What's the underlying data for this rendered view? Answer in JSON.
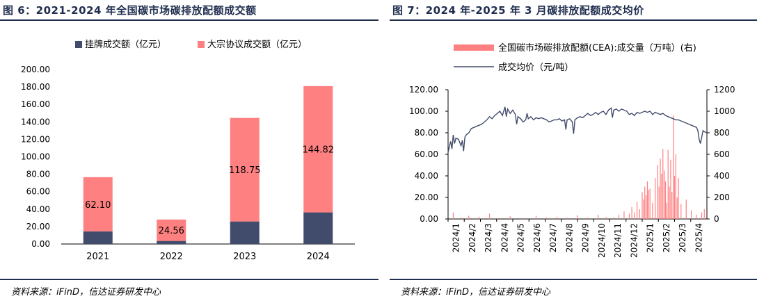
{
  "left": {
    "title": "图 6：2021-2024 年全国碳市场碳排放配额成交额",
    "source": "资料来源：iFinD，信达证券研发中心",
    "chart_data": {
      "type": "bar",
      "stacked": true,
      "categories": [
        "2021",
        "2022",
        "2023",
        "2024"
      ],
      "series": [
        {
          "name": "挂牌成交额（亿元）",
          "color": "#414c6c",
          "values": [
            14.5,
            3.5,
            25.8,
            36.2
          ]
        },
        {
          "name": "大宗协议成交额（亿元）",
          "color": "#ff8080",
          "values": [
            62.1,
            24.56,
            118.75,
            144.82
          ],
          "labels": [
            "62.10",
            "24.56",
            "118.75",
            "144.82"
          ]
        }
      ],
      "ylim": [
        0,
        200
      ],
      "yticks": [
        "0.00",
        "20.00",
        "40.00",
        "60.00",
        "80.00",
        "100.00",
        "120.00",
        "140.00",
        "160.00",
        "180.00",
        "200.00"
      ],
      "legend_position": "top",
      "grid": false
    }
  },
  "right": {
    "title": "图 7：2024 年-2025 年 3 月碳排放配额成交均价",
    "source": "资料来源：iFinD，信达证券研发中心",
    "chart_data": {
      "type": "line",
      "x_tick_labels": [
        "2024/1",
        "2024/2",
        "2024/3",
        "2024/4",
        "2024/5",
        "2024/6",
        "2024/7",
        "2024/8",
        "2024/9",
        "2024/10",
        "2024/11",
        "2024/12",
        "2025/1",
        "2025/2",
        "2025/3",
        "2025/4"
      ],
      "y_left_ticks": [
        "0.00",
        "20.00",
        "40.00",
        "60.00",
        "80.00",
        "100.00",
        "120.00"
      ],
      "y_right_ticks": [
        "0",
        "200",
        "400",
        "600",
        "800",
        "1000",
        "1200"
      ],
      "ylim_left": [
        0,
        120
      ],
      "ylim_right": [
        0,
        1200
      ],
      "legend_position": "top",
      "grid": false,
      "series": [
        {
          "name": "全国碳市场碳排放配额(CEA):成交量（万吨）(右)",
          "type": "bar",
          "axis": "right",
          "color": "#ff8080",
          "points": [
            [
              0.02,
              60
            ],
            [
              0.05,
              15
            ],
            [
              0.08,
              30
            ],
            [
              0.1,
              8
            ],
            [
              0.12,
              20
            ],
            [
              0.16,
              50
            ],
            [
              0.2,
              12
            ],
            [
              0.24,
              25
            ],
            [
              0.3,
              10
            ],
            [
              0.34,
              30
            ],
            [
              0.38,
              15
            ],
            [
              0.42,
              20
            ],
            [
              0.46,
              12
            ],
            [
              0.5,
              35
            ],
            [
              0.54,
              14
            ],
            [
              0.58,
              40
            ],
            [
              0.61,
              18
            ],
            [
              0.64,
              15
            ],
            [
              0.66,
              40
            ],
            [
              0.68,
              70
            ],
            [
              0.7,
              50
            ],
            [
              0.71,
              110
            ],
            [
              0.72,
              60
            ],
            [
              0.73,
              160
            ],
            [
              0.74,
              90
            ],
            [
              0.75,
              250
            ],
            [
              0.755,
              180
            ],
            [
              0.76,
              300
            ],
            [
              0.765,
              220
            ],
            [
              0.77,
              350
            ],
            [
              0.775,
              270
            ],
            [
              0.78,
              280
            ],
            [
              0.79,
              150
            ],
            [
              0.8,
              380
            ],
            [
              0.81,
              500
            ],
            [
              0.815,
              300
            ],
            [
              0.82,
              560
            ],
            [
              0.825,
              420
            ],
            [
              0.83,
              650
            ],
            [
              0.835,
              450
            ],
            [
              0.84,
              350
            ],
            [
              0.845,
              150
            ],
            [
              0.85,
              640
            ],
            [
              0.855,
              300
            ],
            [
              0.86,
              550
            ],
            [
              0.865,
              250
            ],
            [
              0.87,
              960
            ],
            [
              0.875,
              400
            ],
            [
              0.88,
              600
            ],
            [
              0.885,
              200
            ],
            [
              0.89,
              380
            ],
            [
              0.9,
              140
            ],
            [
              0.92,
              180
            ],
            [
              0.94,
              80
            ],
            [
              0.96,
              40
            ],
            [
              0.98,
              60
            ],
            [
              0.99,
              90
            ]
          ]
        },
        {
          "name": "成交均价（元/吨）",
          "type": "line",
          "axis": "left",
          "color": "#414c6c",
          "points": [
            [
              0,
              62
            ],
            [
              0.01,
              72
            ],
            [
              0.015,
              65
            ],
            [
              0.02,
              78
            ],
            [
              0.025,
              70
            ],
            [
              0.03,
              75
            ],
            [
              0.04,
              74
            ],
            [
              0.05,
              68
            ],
            [
              0.055,
              73
            ],
            [
              0.06,
              63
            ],
            [
              0.065,
              76
            ],
            [
              0.07,
              78
            ],
            [
              0.08,
              80
            ],
            [
              0.09,
              84
            ],
            [
              0.1,
              85
            ],
            [
              0.11,
              86
            ],
            [
              0.12,
              87
            ],
            [
              0.13,
              88
            ],
            [
              0.14,
              90
            ],
            [
              0.15,
              92
            ],
            [
              0.16,
              95
            ],
            [
              0.17,
              93
            ],
            [
              0.18,
              96
            ],
            [
              0.19,
              98
            ],
            [
              0.2,
              100
            ],
            [
              0.21,
              96
            ],
            [
              0.22,
              104
            ],
            [
              0.225,
              95
            ],
            [
              0.23,
              102
            ],
            [
              0.24,
              98
            ],
            [
              0.25,
              101
            ],
            [
              0.26,
              97
            ],
            [
              0.265,
              88
            ],
            [
              0.27,
              95
            ],
            [
              0.28,
              93
            ],
            [
              0.29,
              90
            ],
            [
              0.3,
              92
            ],
            [
              0.305,
              98
            ],
            [
              0.31,
              93
            ],
            [
              0.32,
              95
            ],
            [
              0.33,
              92
            ],
            [
              0.34,
              94
            ],
            [
              0.35,
              93
            ],
            [
              0.36,
              94
            ],
            [
              0.37,
              93
            ],
            [
              0.38,
              92
            ],
            [
              0.39,
              90
            ],
            [
              0.4,
              91
            ],
            [
              0.41,
              92
            ],
            [
              0.42,
              92
            ],
            [
              0.43,
              93
            ],
            [
              0.44,
              91
            ],
            [
              0.45,
              92
            ],
            [
              0.455,
              83
            ],
            [
              0.46,
              92
            ],
            [
              0.47,
              93
            ],
            [
              0.48,
              90
            ],
            [
              0.485,
              79
            ],
            [
              0.49,
              92
            ],
            [
              0.5,
              94
            ],
            [
              0.51,
              95
            ],
            [
              0.52,
              94
            ],
            [
              0.53,
              96
            ],
            [
              0.54,
              98
            ],
            [
              0.55,
              96
            ],
            [
              0.56,
              97
            ],
            [
              0.57,
              99
            ],
            [
              0.58,
              97
            ],
            [
              0.59,
              99
            ],
            [
              0.6,
              100
            ],
            [
              0.61,
              97
            ],
            [
              0.62,
              101
            ],
            [
              0.63,
              103
            ],
            [
              0.635,
              94
            ],
            [
              0.64,
              101
            ],
            [
              0.65,
              102
            ],
            [
              0.66,
              100
            ],
            [
              0.67,
              102
            ],
            [
              0.68,
              101
            ],
            [
              0.69,
              100
            ],
            [
              0.7,
              97
            ],
            [
              0.71,
              98
            ],
            [
              0.72,
              96
            ],
            [
              0.73,
              99
            ],
            [
              0.74,
              98
            ],
            [
              0.75,
              99
            ],
            [
              0.76,
              100
            ],
            [
              0.77,
              99
            ],
            [
              0.78,
              100
            ],
            [
              0.79,
              97
            ],
            [
              0.8,
              99
            ],
            [
              0.81,
              98
            ],
            [
              0.82,
              97
            ],
            [
              0.83,
              98
            ],
            [
              0.84,
              96
            ],
            [
              0.85,
              95
            ],
            [
              0.86,
              94
            ],
            [
              0.87,
              93
            ],
            [
              0.88,
              92
            ],
            [
              0.89,
              92
            ],
            [
              0.9,
              91
            ],
            [
              0.91,
              90
            ],
            [
              0.92,
              89
            ],
            [
              0.93,
              88
            ],
            [
              0.94,
              87
            ],
            [
              0.95,
              86
            ],
            [
              0.96,
              85
            ],
            [
              0.965,
              82
            ],
            [
              0.97,
              74
            ],
            [
              0.975,
              70
            ],
            [
              0.98,
              76
            ],
            [
              0.985,
              82
            ],
            [
              0.99,
              81
            ],
            [
              1.0,
              80
            ]
          ]
        }
      ]
    }
  }
}
